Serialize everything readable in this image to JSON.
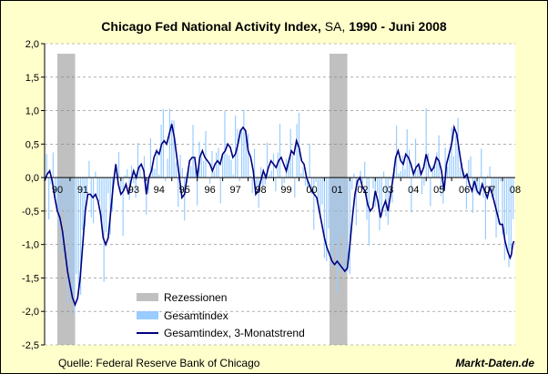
{
  "chart_data": {
    "type": "bar",
    "title": "Chicago Fed National Activity Index,",
    "title_sa": "SA,",
    "title_range": "1990 - Juni 2008",
    "ylim": [
      -2.5,
      2.0
    ],
    "yticks": [
      "2,0",
      "1,5",
      "1,0",
      "0,5",
      "0,0",
      "-0,5",
      "-1,0",
      "-1,5",
      "-2,0",
      "-2,5"
    ],
    "xlim": [
      1990,
      2008.5
    ],
    "xticks": [
      {
        "label": "90",
        "year": 1990
      },
      {
        "label": "91",
        "year": 1991
      },
      {
        "label": "93",
        "year": 1993
      },
      {
        "label": "94",
        "year": 1994
      },
      {
        "label": "95",
        "year": 1995
      },
      {
        "label": "96",
        "year": 1996
      },
      {
        "label": "97",
        "year": 1997
      },
      {
        "label": "98",
        "year": 1998
      },
      {
        "label": "99",
        "year": 1999
      },
      {
        "label": "00",
        "year": 2000
      },
      {
        "label": "01",
        "year": 2001
      },
      {
        "label": "02",
        "year": 2002
      },
      {
        "label": "03",
        "year": 2003
      },
      {
        "label": "04",
        "year": 2004
      },
      {
        "label": "05",
        "year": 2005
      },
      {
        "label": "06",
        "year": 2006
      },
      {
        "label": "07",
        "year": 2007
      },
      {
        "label": "08",
        "year": 2008
      }
    ],
    "grid": true,
    "recessions": [
      [
        1990.5,
        1991.2
      ],
      [
        2001.2,
        2001.9
      ]
    ],
    "series": [
      {
        "name": "Gesamtindex, 3-Monatstrend",
        "color": "#000080",
        "points": [
          [
            1990.0,
            -0.05
          ],
          [
            1990.1,
            0.05
          ],
          [
            1990.2,
            0.1
          ],
          [
            1990.3,
            -0.05
          ],
          [
            1990.4,
            -0.3
          ],
          [
            1990.5,
            -0.5
          ],
          [
            1990.6,
            -0.6
          ],
          [
            1990.7,
            -0.8
          ],
          [
            1990.8,
            -1.1
          ],
          [
            1990.9,
            -1.4
          ],
          [
            1991.0,
            -1.6
          ],
          [
            1991.1,
            -1.8
          ],
          [
            1991.2,
            -1.9
          ],
          [
            1991.3,
            -1.8
          ],
          [
            1991.4,
            -1.5
          ],
          [
            1991.5,
            -1.0
          ],
          [
            1991.6,
            -0.5
          ],
          [
            1991.7,
            -0.25
          ],
          [
            1991.8,
            -0.25
          ],
          [
            1991.9,
            -0.3
          ],
          [
            1992.0,
            -0.25
          ],
          [
            1992.1,
            -0.35
          ],
          [
            1992.2,
            -0.55
          ],
          [
            1992.3,
            -0.9
          ],
          [
            1992.4,
            -1.0
          ],
          [
            1992.5,
            -0.9
          ],
          [
            1992.6,
            -0.5
          ],
          [
            1992.7,
            -0.1
          ],
          [
            1992.8,
            0.2
          ],
          [
            1992.9,
            -0.1
          ],
          [
            1993.0,
            -0.25
          ],
          [
            1993.1,
            -0.2
          ],
          [
            1993.2,
            -0.1
          ],
          [
            1993.3,
            -0.25
          ],
          [
            1993.4,
            -0.05
          ],
          [
            1993.5,
            0.1
          ],
          [
            1993.6,
            0.0
          ],
          [
            1993.7,
            0.15
          ],
          [
            1993.8,
            0.2
          ],
          [
            1993.9,
            0.1
          ],
          [
            1994.0,
            -0.25
          ],
          [
            1994.1,
            0.0
          ],
          [
            1994.2,
            0.1
          ],
          [
            1994.3,
            0.3
          ],
          [
            1994.4,
            0.4
          ],
          [
            1994.5,
            0.35
          ],
          [
            1994.6,
            0.5
          ],
          [
            1994.7,
            0.55
          ],
          [
            1994.8,
            0.5
          ],
          [
            1994.9,
            0.65
          ],
          [
            1995.0,
            0.8
          ],
          [
            1995.1,
            0.6
          ],
          [
            1995.2,
            0.3
          ],
          [
            1995.3,
            0.0
          ],
          [
            1995.4,
            -0.3
          ],
          [
            1995.5,
            -0.25
          ],
          [
            1995.6,
            0.0
          ],
          [
            1995.7,
            0.25
          ],
          [
            1995.8,
            0.3
          ],
          [
            1995.9,
            0.3
          ],
          [
            1996.0,
            0.0
          ],
          [
            1996.1,
            0.3
          ],
          [
            1996.2,
            0.4
          ],
          [
            1996.3,
            0.3
          ],
          [
            1996.4,
            0.25
          ],
          [
            1996.5,
            0.2
          ],
          [
            1996.6,
            0.1
          ],
          [
            1996.7,
            0.2
          ],
          [
            1996.8,
            0.25
          ],
          [
            1996.9,
            0.2
          ],
          [
            1997.0,
            0.35
          ],
          [
            1997.1,
            0.4
          ],
          [
            1997.2,
            0.5
          ],
          [
            1997.3,
            0.45
          ],
          [
            1997.4,
            0.3
          ],
          [
            1997.5,
            0.35
          ],
          [
            1997.6,
            0.5
          ],
          [
            1997.7,
            0.7
          ],
          [
            1997.8,
            0.75
          ],
          [
            1997.9,
            0.7
          ],
          [
            1998.0,
            0.4
          ],
          [
            1998.1,
            0.3
          ],
          [
            1998.2,
            0.1
          ],
          [
            1998.3,
            -0.25
          ],
          [
            1998.4,
            -0.2
          ],
          [
            1998.5,
            -0.05
          ],
          [
            1998.6,
            0.1
          ],
          [
            1998.7,
            0.0
          ],
          [
            1998.8,
            0.15
          ],
          [
            1998.9,
            0.25
          ],
          [
            1999.0,
            0.2
          ],
          [
            1999.1,
            0.15
          ],
          [
            1999.2,
            0.25
          ],
          [
            1999.3,
            0.3
          ],
          [
            1999.4,
            0.2
          ],
          [
            1999.5,
            0.1
          ],
          [
            1999.6,
            0.25
          ],
          [
            1999.7,
            0.4
          ],
          [
            1999.8,
            0.35
          ],
          [
            1999.9,
            0.55
          ],
          [
            2000.0,
            0.45
          ],
          [
            2000.1,
            0.25
          ],
          [
            2000.2,
            0.2
          ],
          [
            2000.3,
            0.0
          ],
          [
            2000.4,
            -0.1
          ],
          [
            2000.5,
            -0.2
          ],
          [
            2000.6,
            -0.25
          ],
          [
            2000.7,
            -0.3
          ],
          [
            2000.8,
            -0.5
          ],
          [
            2000.9,
            -0.7
          ],
          [
            2001.0,
            -0.9
          ],
          [
            2001.1,
            -1.05
          ],
          [
            2001.2,
            -1.15
          ],
          [
            2001.3,
            -1.25
          ],
          [
            2001.4,
            -1.3
          ],
          [
            2001.5,
            -1.25
          ],
          [
            2001.6,
            -1.3
          ],
          [
            2001.7,
            -1.35
          ],
          [
            2001.8,
            -1.4
          ],
          [
            2001.9,
            -1.35
          ],
          [
            2002.0,
            -1.0
          ],
          [
            2002.1,
            -0.6
          ],
          [
            2002.2,
            -0.25
          ],
          [
            2002.3,
            -0.05
          ],
          [
            2002.4,
            0.0
          ],
          [
            2002.5,
            -0.15
          ],
          [
            2002.6,
            -0.2
          ],
          [
            2002.7,
            -0.4
          ],
          [
            2002.8,
            -0.5
          ],
          [
            2002.9,
            -0.45
          ],
          [
            2003.0,
            -0.2
          ],
          [
            2003.1,
            -0.35
          ],
          [
            2003.2,
            -0.6
          ],
          [
            2003.3,
            -0.45
          ],
          [
            2003.4,
            -0.35
          ],
          [
            2003.5,
            -0.5
          ],
          [
            2003.6,
            -0.25
          ],
          [
            2003.7,
            0.0
          ],
          [
            2003.8,
            0.3
          ],
          [
            2003.9,
            0.4
          ],
          [
            2004.0,
            0.25
          ],
          [
            2004.1,
            0.2
          ],
          [
            2004.2,
            0.35
          ],
          [
            2004.3,
            0.3
          ],
          [
            2004.4,
            0.2
          ],
          [
            2004.5,
            0.05
          ],
          [
            2004.6,
            0.15
          ],
          [
            2004.7,
            0.2
          ],
          [
            2004.8,
            0.05
          ],
          [
            2004.9,
            0.15
          ],
          [
            2005.0,
            0.35
          ],
          [
            2005.1,
            0.2
          ],
          [
            2005.2,
            0.1
          ],
          [
            2005.3,
            0.15
          ],
          [
            2005.4,
            0.3
          ],
          [
            2005.5,
            0.25
          ],
          [
            2005.6,
            0.1
          ],
          [
            2005.7,
            -0.2
          ],
          [
            2005.8,
            0.2
          ],
          [
            2005.9,
            0.35
          ],
          [
            2006.0,
            0.5
          ],
          [
            2006.1,
            0.75
          ],
          [
            2006.2,
            0.65
          ],
          [
            2006.3,
            0.4
          ],
          [
            2006.4,
            0.15
          ],
          [
            2006.5,
            0.0
          ],
          [
            2006.6,
            0.05
          ],
          [
            2006.7,
            -0.1
          ],
          [
            2006.8,
            -0.2
          ],
          [
            2006.9,
            -0.05
          ],
          [
            2007.0,
            -0.2
          ],
          [
            2007.1,
            -0.25
          ],
          [
            2007.2,
            -0.1
          ],
          [
            2007.3,
            -0.2
          ],
          [
            2007.4,
            -0.3
          ],
          [
            2007.5,
            -0.15
          ],
          [
            2007.6,
            -0.25
          ],
          [
            2007.7,
            -0.4
          ],
          [
            2007.8,
            -0.55
          ],
          [
            2007.9,
            -0.7
          ],
          [
            2008.0,
            -0.7
          ],
          [
            2008.1,
            -0.95
          ],
          [
            2008.2,
            -1.1
          ],
          [
            2008.3,
            -1.2
          ],
          [
            2008.35,
            -1.15
          ],
          [
            2008.4,
            -1.0
          ],
          [
            2008.45,
            -0.95
          ]
        ]
      },
      {
        "name": "Gesamtindex",
        "color": "#99ccff",
        "note": "monthly bars; approximated by trend plus noise"
      }
    ],
    "legend": {
      "position": "bottom-left",
      "items": [
        {
          "label": "Rezessionen",
          "swatch": "#c0c0c0"
        },
        {
          "label": "Gesamtindex",
          "swatch": "#99ccff"
        },
        {
          "label": "Gesamtindex, 3-Monatstrend",
          "swatch": "#000080"
        }
      ]
    },
    "source": "Quelle: Federal Reserve Bank of Chicago",
    "brand": "Markt-Daten.de"
  }
}
